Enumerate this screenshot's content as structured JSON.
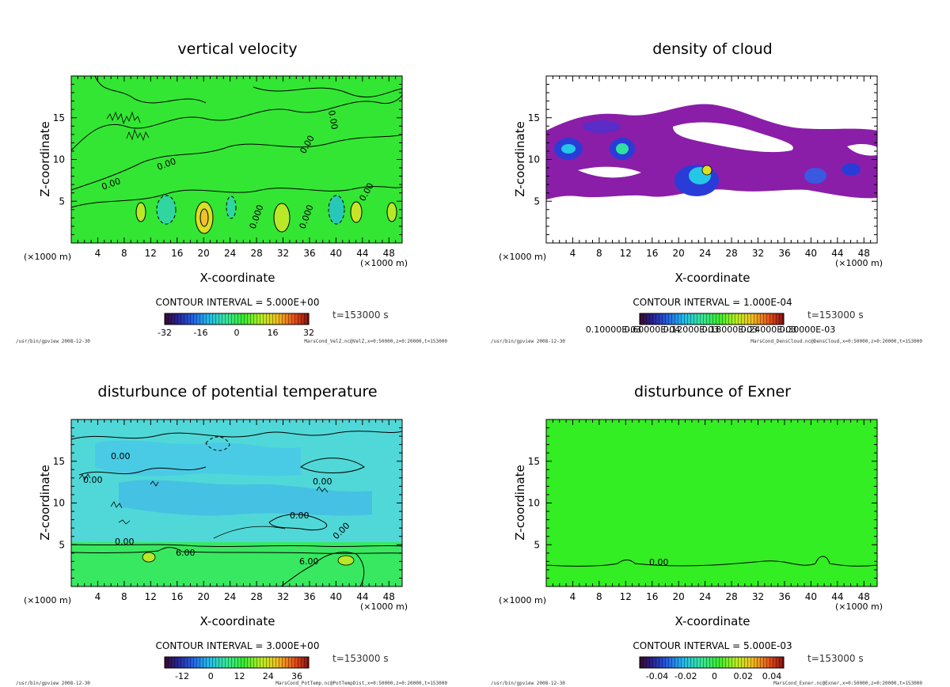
{
  "figure": {
    "panels": [
      {
        "id": "velz",
        "title": "vertical velocity",
        "fill": "#33e633",
        "contour_interval": "CONTOUR INTERVAL = 5.000E+00",
        "time": "t=153000 s",
        "colorbar_labels": [
          "-32",
          "-16",
          "0",
          "16",
          "32"
        ],
        "footer_left": "/usr/bin/gpview  2008-12-30",
        "footer_right": "MarsCond_VelZ.nc@VelZ,x=0:50000,z=0:20000,t=153000",
        "contour_labels": [
          "0.00",
          "0.00",
          "0.00",
          "0.00",
          "0.000",
          "0.000",
          "0.00"
        ]
      },
      {
        "id": "denscloud",
        "title": "density of cloud",
        "fill": "#ffffff",
        "contour_interval": "CONTOUR INTERVAL = 1.000E-04",
        "time": "t=153000 s",
        "colorbar_labels": [
          "0.10000E-03",
          "0.60000E-04",
          "0.12000E-03",
          "0.18000E-03",
          "0.24000E-03",
          "0.30000E-03"
        ],
        "footer_left": "/usr/bin/gpview  2008-12-30",
        "footer_right": "MarsCond_DensCloud.nc@DensCloud,x=0:50000,z=0:20000,t=153000",
        "contour_labels": []
      },
      {
        "id": "pottemp",
        "title": "disturbunce of potential temperature",
        "fill": "#4fe6c8",
        "contour_interval": "CONTOUR INTERVAL = 3.000E+00",
        "time": "t=153000 s",
        "colorbar_labels": [
          "-12",
          "0",
          "12",
          "24",
          "36"
        ],
        "footer_left": "/usr/bin/gpview  2008-12-30",
        "footer_right": "MarsCond_PotTemp.nc@PotTempDist,x=0:50000,z=0:20000,t=153000",
        "contour_labels": [
          "0.00",
          "0.00",
          "0.00",
          "0.00",
          "0.00",
          "6.00",
          "6.00",
          "0.00"
        ]
      },
      {
        "id": "exner",
        "title": "disturbunce of Exner",
        "fill": "#33ee22",
        "contour_interval": "CONTOUR INTERVAL = 5.000E-03",
        "time": "t=153000 s",
        "colorbar_labels": [
          "-0.04",
          "-0.02",
          "0",
          "0.02",
          "0.04"
        ],
        "footer_left": "/usr/bin/gpview  2008-12-30",
        "footer_right": "MarsCond_Exner.nc@Exner,x=0:50000,z=0:20000,t=153000",
        "contour_labels": [
          "0.00"
        ]
      }
    ],
    "axes": {
      "xlabel": "X-coordinate",
      "ylabel": "Z-coordinate",
      "x_unit_left": "(×1000 m)",
      "x_unit_right": "(×1000 m)",
      "x_ticks": [
        "4",
        "8",
        "12",
        "16",
        "20",
        "24",
        "28",
        "32",
        "36",
        "40",
        "44",
        "48"
      ],
      "y_ticks": [
        "5",
        "10",
        "15"
      ],
      "xlim": [
        0,
        50
      ],
      "ylim": [
        0,
        20
      ]
    }
  },
  "chart_data": [
    {
      "type": "heatmap",
      "title": "vertical velocity",
      "xlabel": "X-coordinate",
      "ylabel": "Z-coordinate",
      "xlim": [
        0,
        50000
      ],
      "ylim": [
        0,
        20000
      ],
      "x_ticks_km": [
        4,
        8,
        12,
        16,
        20,
        24,
        28,
        32,
        36,
        40,
        44,
        48
      ],
      "y_ticks_km": [
        5,
        10,
        15
      ],
      "contour_interval": 5.0,
      "colorbar_range": [
        -40,
        40
      ],
      "time_s": 153000,
      "updraft_cores_km": [
        {
          "x": 10.5,
          "z": 3.5
        },
        {
          "x": 19.5,
          "z": 2.8
        },
        {
          "x": 31.5,
          "z": 2.8
        },
        {
          "x": 43.5,
          "z": 3.2
        },
        {
          "x": 48.5,
          "z": 3.5
        }
      ]
    },
    {
      "type": "heatmap",
      "title": "density of cloud",
      "xlabel": "X-coordinate",
      "ylabel": "Z-coordinate",
      "xlim": [
        0,
        50000
      ],
      "ylim": [
        0,
        20000
      ],
      "contour_interval": 0.0001,
      "colorbar_range": [
        0,
        0.0003
      ],
      "time_s": 153000,
      "cloud_layer_z_km": [
        5,
        17
      ],
      "maxima_km": [
        {
          "x": 3,
          "z": 11
        },
        {
          "x": 11.5,
          "z": 12
        },
        {
          "x": 24,
          "z": 8
        }
      ]
    },
    {
      "type": "heatmap",
      "title": "disturbunce of potential temperature",
      "xlabel": "X-coordinate",
      "ylabel": "Z-coordinate",
      "xlim": [
        0,
        50000
      ],
      "ylim": [
        0,
        20000
      ],
      "contour_interval": 3.0,
      "colorbar_range": [
        -18,
        42
      ],
      "time_s": 153000,
      "labeled_contours": [
        0.0,
        6.0
      ]
    },
    {
      "type": "heatmap",
      "title": "disturbunce of Exner",
      "xlabel": "X-coordinate",
      "ylabel": "Z-coordinate",
      "xlim": [
        0,
        50000
      ],
      "ylim": [
        0,
        20000
      ],
      "contour_interval": 0.005,
      "colorbar_range": [
        -0.05,
        0.05
      ],
      "time_s": 153000,
      "labeled_contours": [
        0.0
      ],
      "zero_contour_z_km": 2.5
    }
  ]
}
